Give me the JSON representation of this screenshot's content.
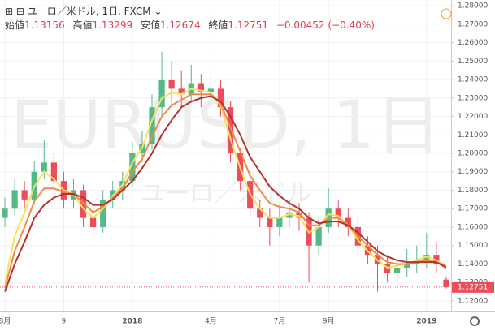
{
  "header": {
    "symbol": "ユーロ／米ドル, 1日, FXCM",
    "open_label": "始値",
    "high_label": "高値",
    "low_label": "安値",
    "close_label": "終値",
    "change_label": "−0.00452 (−0.40%)"
  },
  "watermark": {
    "line1": "EURUSD, 1日",
    "line2": "ユーロ／米ドル"
  },
  "chart_data": {
    "type": "candlestick",
    "categories": [
      "8月",
      null,
      null,
      null,
      null,
      null,
      "9",
      null,
      null,
      null,
      null,
      null,
      null,
      "2018",
      null,
      null,
      null,
      null,
      null,
      null,
      null,
      "4月",
      null,
      null,
      null,
      null,
      null,
      null,
      "7月",
      null,
      null,
      null,
      null,
      "9月",
      null,
      null,
      null,
      null,
      null,
      null,
      null,
      null,
      null,
      "2019",
      null,
      null
    ],
    "open": [
      1.165,
      1.17,
      1.18,
      1.175,
      1.19,
      1.195,
      1.185,
      1.175,
      1.18,
      1.165,
      1.16,
      1.175,
      1.18,
      1.185,
      1.2,
      1.205,
      1.225,
      1.24,
      1.235,
      1.232,
      1.238,
      1.233,
      1.235,
      1.225,
      1.2,
      1.185,
      1.17,
      1.165,
      1.16,
      1.165,
      1.168,
      1.165,
      1.15,
      1.16,
      1.17,
      1.165,
      1.16,
      1.15,
      1.145,
      1.14,
      1.135,
      1.138,
      1.14,
      1.142,
      1.145,
      1.13156
    ],
    "high": [
      1.176,
      1.186,
      1.185,
      1.196,
      1.207,
      1.2,
      1.19,
      1.186,
      1.183,
      1.17,
      1.18,
      1.185,
      1.19,
      1.206,
      1.212,
      1.232,
      1.255,
      1.25,
      1.245,
      1.248,
      1.243,
      1.242,
      1.24,
      1.228,
      1.203,
      1.19,
      1.175,
      1.17,
      1.172,
      1.175,
      1.173,
      1.168,
      1.165,
      1.181,
      1.175,
      1.17,
      1.165,
      1.155,
      1.15,
      1.145,
      1.145,
      1.148,
      1.15,
      1.157,
      1.152,
      1.13299
    ],
    "low": [
      1.16,
      1.166,
      1.17,
      1.172,
      1.186,
      1.18,
      1.17,
      1.17,
      1.16,
      1.155,
      1.157,
      1.17,
      1.175,
      1.182,
      1.195,
      1.202,
      1.22,
      1.225,
      1.225,
      1.228,
      1.225,
      1.228,
      1.22,
      1.195,
      1.18,
      1.165,
      1.16,
      1.15,
      1.155,
      1.16,
      1.158,
      1.13,
      1.145,
      1.157,
      1.16,
      1.155,
      1.145,
      1.14,
      1.125,
      1.13,
      1.13,
      1.133,
      1.135,
      1.138,
      1.135,
      1.12674
    ],
    "close": [
      1.17,
      1.18,
      1.175,
      1.19,
      1.195,
      1.185,
      1.175,
      1.18,
      1.165,
      1.16,
      1.175,
      1.18,
      1.185,
      1.2,
      1.205,
      1.225,
      1.24,
      1.235,
      1.232,
      1.238,
      1.233,
      1.235,
      1.225,
      1.2,
      1.185,
      1.17,
      1.165,
      1.16,
      1.165,
      1.168,
      1.165,
      1.15,
      1.16,
      1.17,
      1.165,
      1.16,
      1.15,
      1.145,
      1.14,
      1.135,
      1.138,
      1.14,
      1.142,
      1.145,
      1.14,
      1.12751
    ],
    "up_color": "#53b987",
    "down_color": "#eb4d5c",
    "series": [
      {
        "color": "#f7e15a",
        "values": [
          1.13,
          1.155,
          1.168,
          1.182,
          1.19,
          1.186,
          1.18,
          1.178,
          1.17,
          1.165,
          1.17,
          1.177,
          1.183,
          1.195,
          1.203,
          1.218,
          1.23,
          1.233,
          1.232,
          1.235,
          1.234,
          1.233,
          1.226,
          1.208,
          1.192,
          1.178,
          1.17,
          1.165,
          1.165,
          1.167,
          1.166,
          1.157,
          1.16,
          1.167,
          1.166,
          1.161,
          1.153,
          1.147,
          1.142,
          1.138,
          1.139,
          1.14,
          1.142,
          1.144,
          1.142,
          1.139
        ]
      },
      {
        "color": "#f08a4b",
        "values": [
          1.127,
          1.147,
          1.16,
          1.174,
          1.181,
          1.181,
          1.179,
          1.178,
          1.173,
          1.168,
          1.171,
          1.176,
          1.181,
          1.19,
          1.197,
          1.209,
          1.22,
          1.226,
          1.229,
          1.232,
          1.232,
          1.232,
          1.227,
          1.214,
          1.201,
          1.188,
          1.18,
          1.173,
          1.171,
          1.17,
          1.168,
          1.161,
          1.161,
          1.165,
          1.165,
          1.161,
          1.155,
          1.15,
          1.145,
          1.141,
          1.14,
          1.14,
          1.141,
          1.142,
          1.141,
          1.139
        ]
      },
      {
        "color": "#b5312c",
        "values": [
          1.125,
          1.14,
          1.152,
          1.165,
          1.172,
          1.176,
          1.178,
          1.178,
          1.176,
          1.172,
          1.172,
          1.175,
          1.18,
          1.185,
          1.192,
          1.2,
          1.21,
          1.218,
          1.225,
          1.228,
          1.23,
          1.231,
          1.228,
          1.22,
          1.21,
          1.198,
          1.19,
          1.182,
          1.177,
          1.173,
          1.17,
          1.165,
          1.162,
          1.163,
          1.163,
          1.161,
          1.157,
          1.152,
          1.147,
          1.144,
          1.142,
          1.141,
          1.141,
          1.141,
          1.141,
          1.138
        ]
      }
    ],
    "ylim": [
      1.1147,
      1.2831
    ],
    "yticks": [
      {
        "value": 1.12,
        "label": "1.12000"
      },
      {
        "value": 1.13,
        "label": "1.13000"
      },
      {
        "value": 1.14,
        "label": "1.14000"
      },
      {
        "value": 1.15,
        "label": "1.15000"
      },
      {
        "value": 1.16,
        "label": "1.16000"
      },
      {
        "value": 1.17,
        "label": "1.17000"
      },
      {
        "value": 1.18,
        "label": "1.18000"
      },
      {
        "value": 1.19,
        "label": "1.19000"
      },
      {
        "value": 1.2,
        "label": "1.20000"
      },
      {
        "value": 1.21,
        "label": "1.21000"
      },
      {
        "value": 1.22,
        "label": "1.22000"
      },
      {
        "value": 1.23,
        "label": "1.23000"
      },
      {
        "value": 1.24,
        "label": "1.24000"
      },
      {
        "value": 1.25,
        "label": "1.25000"
      },
      {
        "value": 1.26,
        "label": "1.26000"
      },
      {
        "value": 1.27,
        "label": "1.27000"
      },
      {
        "value": 1.28,
        "label": "1.28000"
      }
    ],
    "grid": true
  }
}
